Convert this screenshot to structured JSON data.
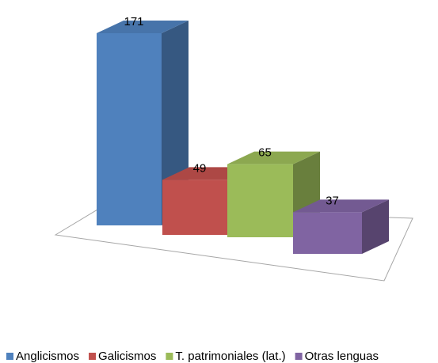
{
  "chart_data": {
    "type": "bar3d",
    "series": [
      {
        "name": "Anglicismos",
        "color": "#4f81bd",
        "values": [
          171
        ]
      },
      {
        "name": "Galicismos",
        "color": "#c0504d",
        "values": [
          49
        ]
      },
      {
        "name": "T. patrimoniales (lat.)",
        "color": "#9bbb59",
        "values": [
          65
        ]
      },
      {
        "name": "Otras lenguas",
        "color": "#8064a2",
        "values": [
          37
        ]
      }
    ],
    "legend": "bottom"
  }
}
